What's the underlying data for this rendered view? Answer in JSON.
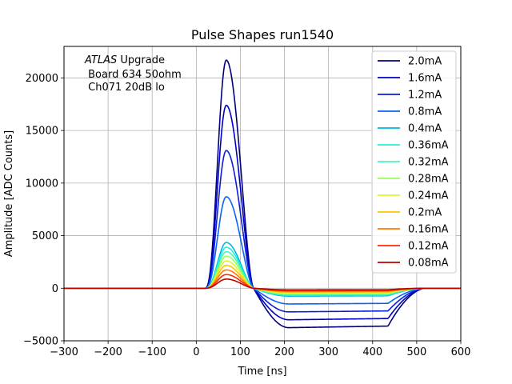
{
  "chart_data": {
    "type": "line",
    "title": "Pulse Shapes run1540",
    "xlabel": "Time [ns]",
    "ylabel": "Amplitude [ADC Counts]",
    "xlim": [
      -300,
      600
    ],
    "ylim": [
      -5000,
      23000
    ],
    "xticks": [
      -300,
      -200,
      -100,
      0,
      100,
      200,
      300,
      400,
      500,
      600
    ],
    "xtick_labels": [
      "−300",
      "−200",
      "−100",
      "0",
      "100",
      "200",
      "300",
      "400",
      "500",
      "600"
    ],
    "yticks": [
      -5000,
      0,
      5000,
      10000,
      15000,
      20000
    ],
    "ytick_labels": [
      "−5000",
      "0",
      "5000",
      "10000",
      "15000",
      "20000"
    ],
    "grid": true,
    "legend_position": "top-right",
    "annotation": {
      "line1_italic": "ATLAS",
      "line1_rest": " Upgrade",
      "line2": " Board 634 50ohm",
      "line3": " Ch071 20dB lo"
    },
    "series": [
      {
        "name": "2.0mA",
        "color": "#00007f",
        "peak": 21700,
        "undershoot": -3750
      },
      {
        "name": "1.6mA",
        "color": "#0000c8",
        "peak": 17400,
        "undershoot": -3000
      },
      {
        "name": "1.2mA",
        "color": "#0b1fd6",
        "peak": 13100,
        "undershoot": -2250
      },
      {
        "name": "0.8mA",
        "color": "#0a64f0",
        "peak": 8700,
        "undershoot": -1500
      },
      {
        "name": "0.4mA",
        "color": "#00b8e0",
        "peak": 4350,
        "undershoot": -750
      },
      {
        "name": "0.36mA",
        "color": "#1ef0e0",
        "peak": 3900,
        "undershoot": -680
      },
      {
        "name": "0.32mA",
        "color": "#4af8b0",
        "peak": 3480,
        "undershoot": -600
      },
      {
        "name": "0.28mA",
        "color": "#9cff5a",
        "peak": 3050,
        "undershoot": -530
      },
      {
        "name": "0.24mA",
        "color": "#e4f530",
        "peak": 2600,
        "undershoot": -450
      },
      {
        "name": "0.2mA",
        "color": "#ffc400",
        "peak": 2180,
        "undershoot": -380
      },
      {
        "name": "0.16mA",
        "color": "#ff7a00",
        "peak": 1740,
        "undershoot": -300
      },
      {
        "name": "0.12mA",
        "color": "#ff2a00",
        "peak": 1300,
        "undershoot": -230
      },
      {
        "name": "0.08mA",
        "color": "#c00000",
        "peak": 870,
        "undershoot": -150
      }
    ]
  }
}
